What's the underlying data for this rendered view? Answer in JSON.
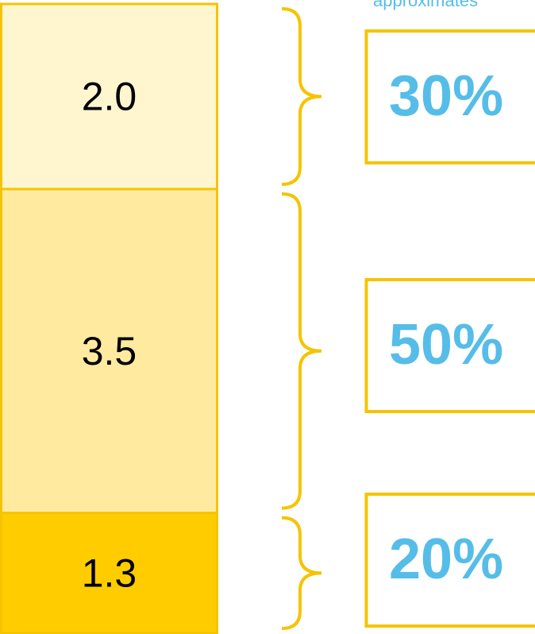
{
  "chart_data": {
    "type": "stacked-column",
    "caption": "approximates",
    "values": [
      1.3,
      3.5,
      2.0
    ],
    "value_labels": [
      "1.3",
      "3.5",
      "2.0"
    ],
    "colors": [
      "#ffcc00",
      "#ffeaa0",
      "#fff6cf"
    ],
    "annotations": [
      "20%",
      "50%",
      "30%"
    ],
    "ylim": [
      0,
      6.8
    ]
  }
}
